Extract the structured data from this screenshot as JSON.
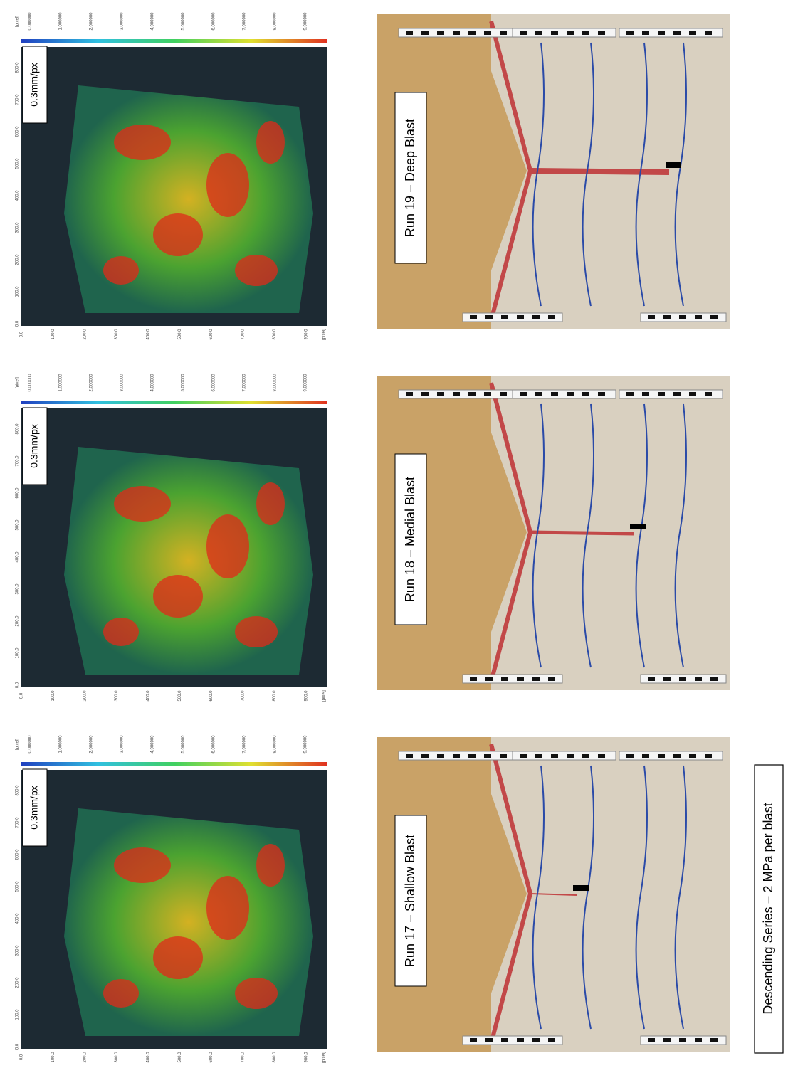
{
  "panels": [
    {
      "piv": {
        "scale_label": "0.3mm/px",
        "colorbar_ticks": [
          "0.000000",
          "1.000000",
          "2.000000",
          "3.000000",
          "4.000000",
          "5.000000",
          "6.000000",
          "7.000000",
          "8.000000",
          "9.000000"
        ],
        "colorbar_unit": "[pixel]",
        "depth_ticks": [
          "0.0",
          "100.0",
          "200.0",
          "300.0",
          "400.0",
          "500.0",
          "600.0",
          "700.0",
          "800.0",
          "900.0"
        ],
        "depth_unit": "[pixel]",
        "width_ticks": [
          "0.0",
          "100.0",
          "200.0",
          "300.0",
          "400.0",
          "500.0",
          "600.0",
          "700.0",
          "800.0"
        ]
      },
      "photo_label": "Run 17 – Shallow Blast"
    },
    {
      "piv": {
        "scale_label": "0.3mm/px",
        "colorbar_ticks": [
          "0.000000",
          "1.000000",
          "2.000000",
          "3.000000",
          "4.000000",
          "5.000000",
          "6.000000",
          "7.000000",
          "8.000000",
          "9.000000"
        ],
        "colorbar_unit": "[pixel]",
        "depth_ticks": [
          "0.0",
          "100.0",
          "200.0",
          "300.0",
          "400.0",
          "500.0",
          "600.0",
          "700.0",
          "800.0",
          "900.0"
        ],
        "depth_unit": "[pixel]",
        "width_ticks": [
          "0.0",
          "100.0",
          "200.0",
          "300.0",
          "400.0",
          "500.0",
          "600.0",
          "700.0",
          "800.0"
        ]
      },
      "photo_label": "Run 18 – Medial Blast"
    },
    {
      "piv": {
        "scale_label": "0.3mm/px",
        "colorbar_ticks": [
          "0.000000",
          "1.000000",
          "2.000000",
          "3.000000",
          "4.000000",
          "5.000000",
          "6.000000",
          "7.000000",
          "8.000000",
          "9.000000"
        ],
        "colorbar_unit": "[pixel]",
        "depth_ticks": [
          "0.0",
          "100.0",
          "200.0",
          "300.0",
          "400.0",
          "500.0",
          "600.0",
          "700.0",
          "800.0",
          "900.0"
        ],
        "depth_unit": "[pixel]",
        "width_ticks": [
          "0.0",
          "100.0",
          "200.0",
          "300.0",
          "400.0",
          "500.0",
          "600.0",
          "700.0",
          "800.0"
        ]
      },
      "photo_label": "Run 19 – Deep Blast"
    }
  ],
  "caption": "Descending Series – 2 MPa per blast"
}
